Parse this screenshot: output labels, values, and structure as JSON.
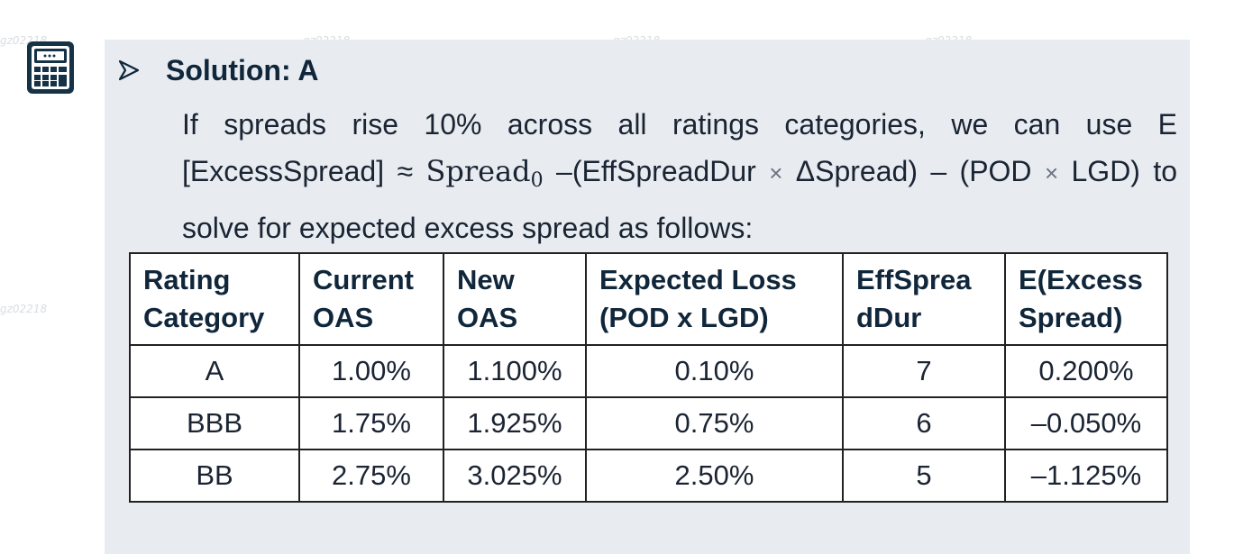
{
  "watermark": "gz02218",
  "heading": {
    "title": "Solution: A"
  },
  "paragraph": {
    "line1": "If spreads rise 10% across all ratings categories, we can use E",
    "line2_a": "[ExcessSpread] ≈ ",
    "line2_spread": "Spread",
    "line2_sub": "0",
    "line2_b": " –(EffSpreadDur ",
    "line2_times1": "×",
    "line2_c": " ΔSpread) – (POD ",
    "line2_times2": "×",
    "line2_d": " LGD) to",
    "line3": "solve for expected excess spread as follows:"
  },
  "table": {
    "headers": [
      [
        "Rating",
        "Category"
      ],
      [
        "Current",
        "OAS"
      ],
      [
        "New",
        "OAS"
      ],
      [
        "Expected Loss",
        "(POD x LGD)"
      ],
      [
        "EffSprea",
        "dDur"
      ],
      [
        "E(Excess",
        "Spread)"
      ]
    ],
    "rows": [
      [
        "A",
        "1.00%",
        "1.100%",
        "0.10%",
        "7",
        "0.200%"
      ],
      [
        "BBB",
        "1.75%",
        "1.925%",
        "0.75%",
        "6",
        "–0.050%"
      ],
      [
        "BB",
        "2.75%",
        "3.025%",
        "2.50%",
        "5",
        "–1.125%"
      ]
    ]
  }
}
